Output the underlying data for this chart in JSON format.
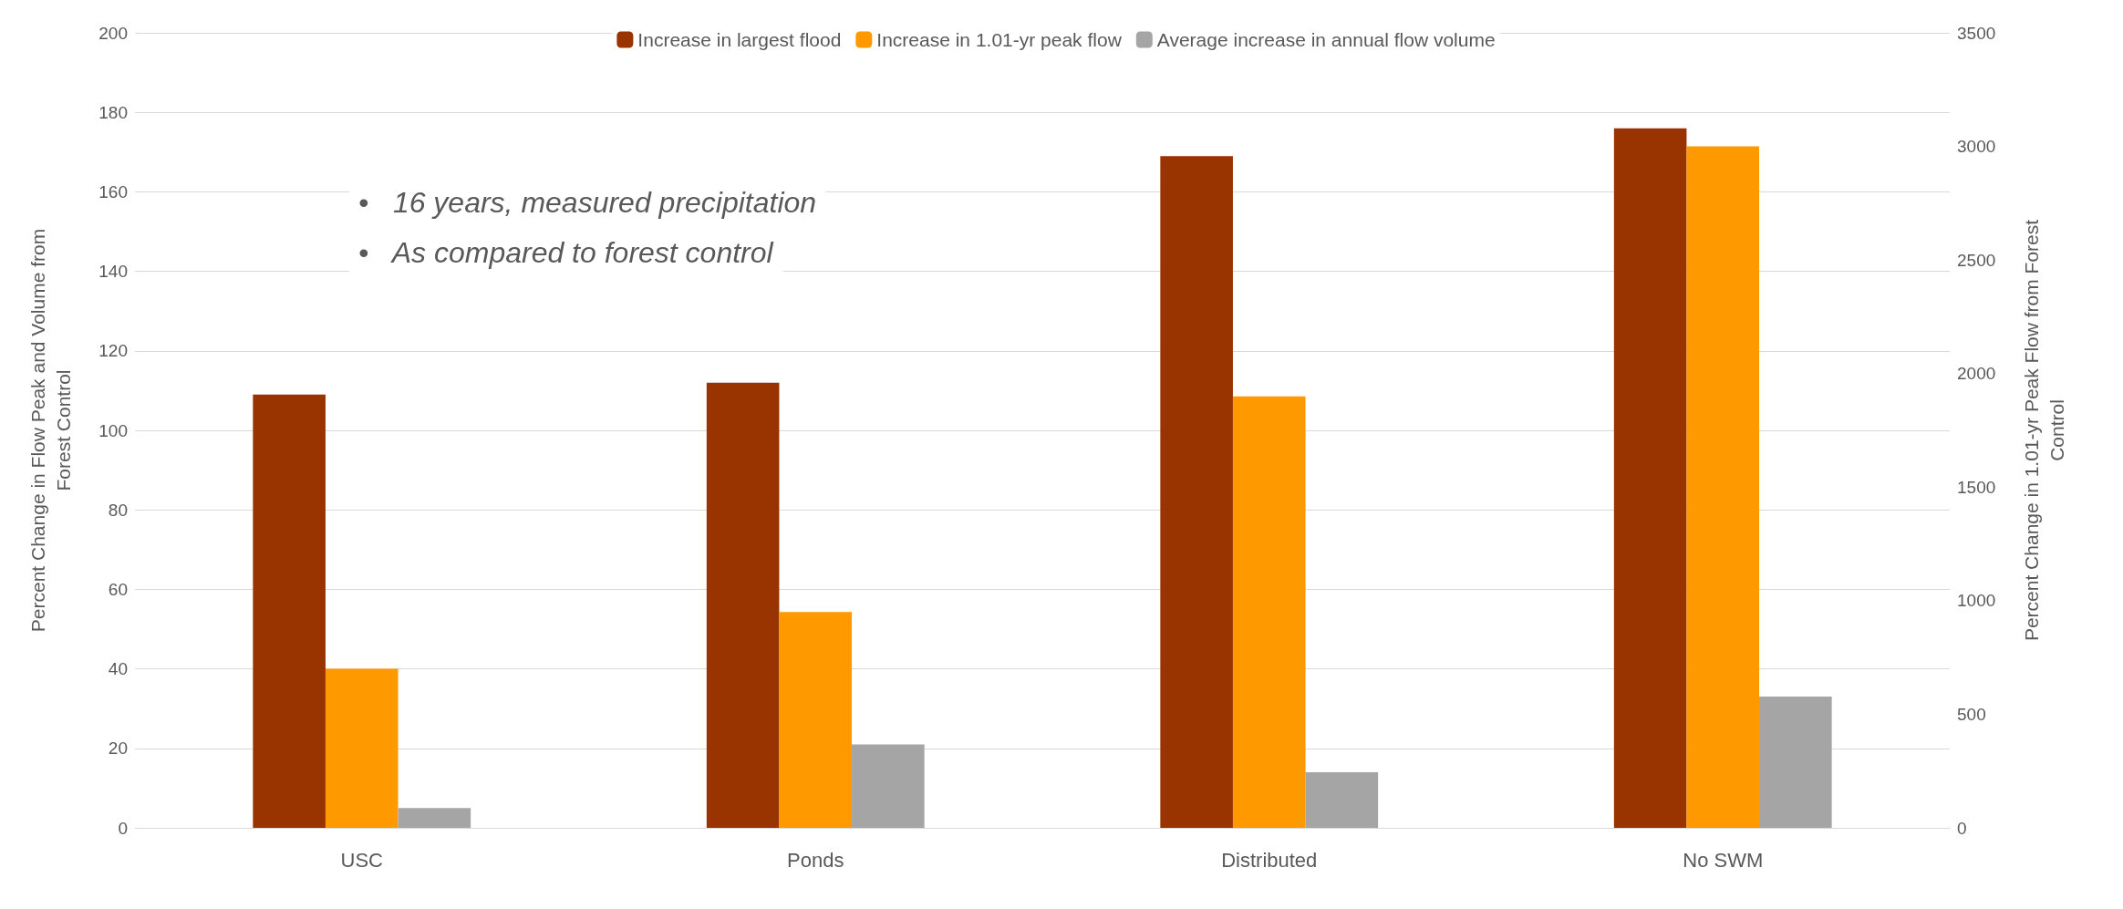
{
  "chart_data": {
    "type": "bar",
    "categories": [
      "USC",
      "Ponds",
      "Distributed",
      "No SWM"
    ],
    "series": [
      {
        "name": "Increase in largest flood",
        "color": "#993300",
        "values": [
          109,
          112,
          169,
          176
        ]
      },
      {
        "name": "Increase in 1.01-yr peak flow",
        "color": "#ff9900",
        "values": [
          700,
          950,
          1900,
          3000
        ],
        "axis": "y2"
      },
      {
        "name": "Average increase in annual flow volume",
        "color": "#a5a5a5",
        "values": [
          5,
          21,
          14,
          33
        ]
      }
    ],
    "ylabel": "Percent Change in Flow Peak and Volume from Forest Control",
    "y2label": "Percent Change in 1.01-yr Peak Flow from Forest Control",
    "ylim": [
      0,
      200
    ],
    "yticks": [
      0,
      20,
      40,
      60,
      80,
      100,
      120,
      140,
      160,
      180,
      200
    ],
    "y2lim": [
      0,
      3500
    ],
    "y2ticks": [
      0,
      500,
      1000,
      1500,
      2000,
      2500,
      3000,
      3500
    ],
    "annotations": [
      "•   16 years, measured precipitation",
      "•   As compared to forest control"
    ],
    "grid": "y",
    "legend": "top"
  }
}
